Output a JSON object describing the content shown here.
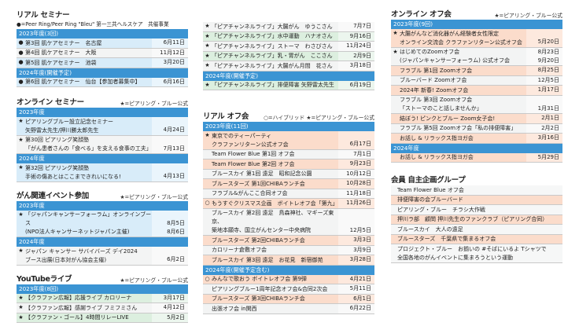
{
  "columns": [
    [
      {
        "title": "リアル セミナー",
        "subtitle": "●=Peer Ring/Peer Ring \"Bleu\" 第一三共ヘルスケア　共催事業",
        "blocks": [
          {
            "header": "2023年度(3回)",
            "rows": [
              {
                "mark": "●",
                "text": "第3回 肌ケアセミナー　名古屋",
                "date": "6月11日",
                "color": "blue"
              },
              {
                "mark": "●",
                "text": "第4回 肌ケアセミナー　大阪",
                "date": "11月12日",
                "color": "gray"
              },
              {
                "mark": "●",
                "text": "第5回 肌ケアセミナー　池袋",
                "date": "3月20日",
                "color": "blue"
              }
            ]
          },
          {
            "header": "2024年度(開催予定)",
            "rows": [
              {
                "mark": "●",
                "text": "第6回 肌ケアセミナー　仙台【参加者募集中】",
                "date": "6月16日",
                "color": "blue"
              }
            ]
          }
        ]
      },
      {
        "title": "オンライン セミナー",
        "legend": "★=ピアリング・ブルー公式",
        "blocks": [
          {
            "header": "2023年度",
            "rows": [
              {
                "mark": "★",
                "text": "ピアリングブルー設立記念セミナー\n矢野雷太先生/押川勝太郎先生",
                "date": "4月24日",
                "color": "blue"
              },
              {
                "mark": "★",
                "text": "第30回 ピアリング笑顔塾\n「がん患者さんの「食べる」を支える食事の工夫」",
                "date": "7月13日",
                "color": "gray"
              }
            ]
          },
          {
            "header": "2024年度",
            "rows": [
              {
                "mark": "★",
                "text": "第32回 ピアリング笑顔塾\n手術の傷あとはここまできれいになる!",
                "date": "4月13日",
                "color": "blue"
              }
            ]
          }
        ]
      },
      {
        "title": "がん関連イベント参加",
        "legend": "★=ピアリング・ブルー公式",
        "blocks": [
          {
            "header": "2023年度",
            "rows": [
              {
                "mark": "★",
                "text": "「ジャパンキャンサーフォーラム」オンラインブース\n(NPO法人キャンサーネットジャパン主催)",
                "date": "8月5日\n8月6日",
                "color": "blue"
              }
            ]
          },
          {
            "header": "2024年度",
            "rows": [
              {
                "mark": "★",
                "text": "ジャパン キャンサー サバイバーズ デイ2024\nブース出展(日本対がん協会主催)",
                "date": "6月2日",
                "color": "gray"
              }
            ]
          }
        ]
      },
      {
        "title": "YouTubeライブ",
        "legend": "★=ピアリング・ブルー公式",
        "blocks": [
          {
            "header": "2023年度(8回)",
            "rows": [
              {
                "mark": "★",
                "text": "【クラファン広報】応援ライブ カロリーナ",
                "date": "3月17日",
                "color": "green"
              },
              {
                "mark": "★",
                "text": "【クラファン広報】感謝ライブ フミフミさん",
                "date": "4月12日",
                "color": "gray"
              },
              {
                "mark": "★",
                "text": "【クラファン・ゴール】4時間リレーLIVE",
                "date": "5月2日",
                "color": "green"
              }
            ]
          }
        ]
      }
    ],
    [
      {
        "blocks": [
          {
            "rows": [
              {
                "mark": "★",
                "text": "「ピアチャンネルライブ」大腸がん　ゆうこさん",
                "date": "7月7日",
                "color": "gray"
              },
              {
                "mark": "★",
                "text": "「ピアチャンネルライブ」水中運動　ハナオさん",
                "date": "9月16日",
                "color": "green"
              },
              {
                "mark": "★",
                "text": "「ピアチャンネルライブ」ストーマ　わさびさん",
                "date": "11月24日",
                "color": "gray"
              },
              {
                "mark": "★",
                "text": "「ピアチャンネルライブ」乳・胃がん　ここさん",
                "date": "2月9日",
                "color": "green"
              },
              {
                "mark": "★",
                "text": "「ピアチャンネルライブ」大腸がん月間　花さん",
                "date": "3月18日",
                "color": "gray"
              }
            ]
          },
          {
            "header": "2024年度(開催予定)",
            "rows": [
              {
                "mark": "★",
                "text": "「ピアチャンネルライブ」排便障害 矢野雷太先生",
                "date": "6月19日",
                "color": "green"
              }
            ]
          }
        ]
      },
      {
        "title": "リアル オフ会",
        "legend": "○=ハイブリッド ★=ピアリング・ブルー公式",
        "blocks": [
          {
            "header": "2023年度(11回)",
            "rows": [
              {
                "mark": "★",
                "text": "東京でのティーパーティ\nクラファンリターン公式オフ会",
                "date": "6月17日",
                "color": "pink"
              },
              {
                "mark": "",
                "text": "Team Flower Blue 第1回 オフ会",
                "date": "7月1日",
                "color": "gray"
              },
              {
                "mark": "",
                "text": "Team Flower Blue 第2回 オフ会",
                "date": "9月23日",
                "color": "pink"
              },
              {
                "mark": "",
                "text": "ブルースカイ 第1回 遠足　昭和記念公園",
                "date": "10月12日",
                "color": "gray"
              },
              {
                "mark": "",
                "text": "ブルースターズ 第1回CHIBAランチ会",
                "date": "10月28日",
                "color": "pink"
              },
              {
                "mark": "",
                "text": "フラブル&がんここ合同オフ会",
                "date": "11月18日",
                "color": "gray"
              },
              {
                "mark": "○",
                "text": "もうすぐクリスマス企画　ボイトレオフ会「第九」",
                "date": "11月26日",
                "color": "pink"
              },
              {
                "mark": "",
                "text": "ブルースカイ 第2回 遠足　鳥森神社、マギーズ東京、\n築地本願寺、国立がんセンター中央病院",
                "date": "12月5日",
                "color": "gray"
              },
              {
                "mark": "",
                "text": "ブルースターズ 第2回CHIBAランチ会",
                "date": "3月3日",
                "color": "pink"
              },
              {
                "mark": "",
                "text": "カロリーナ倉敷オフ会",
                "date": "3月9日",
                "color": "gray"
              },
              {
                "mark": "",
                "text": "ブルースカイ 第3回 遠足　お花見　新宿御苑",
                "date": "3月28日",
                "color": "pink"
              }
            ]
          },
          {
            "header": "2024年度(開催予定含む)",
            "rows": [
              {
                "mark": "○",
                "text": "みんなで歌おう ボイトレオフ会 第9弾",
                "date": "4月21日",
                "color": "pink"
              },
              {
                "mark": "",
                "text": "ピアリングブルー1周年記念オフ会&合同2次会",
                "date": "5月11日",
                "color": "gray"
              },
              {
                "mark": "",
                "text": "ブルースターズ 第3回CHIBAランチ会",
                "date": "6月1日",
                "color": "pink"
              },
              {
                "mark": "",
                "text": "出張オフ会 in関西",
                "date": "6月22日",
                "color": "gray"
              }
            ]
          }
        ]
      }
    ],
    [
      {
        "title": "オンライン オフ会",
        "legend": "★=ピアリング・ブルー公式",
        "blocks": [
          {
            "header": "2023年度(9回)",
            "rows": [
              {
                "mark": "★",
                "text": "大腸がんなど消化器がん経験者女性限定\nオンライン交流会 クラファンリターン公式オフ会",
                "date": "5月20日",
                "color": "pink"
              },
              {
                "mark": "★",
                "text": "はじめてのZoomオフ会\n(ジャパンキャンサーフォーラム) 公式オフ会",
                "date": "8月23日\n9月20日",
                "color": "gray"
              },
              {
                "mark": "",
                "text": "フラブル 第1回 Zoomオフ会",
                "date": "8月25日",
                "color": "pink"
              },
              {
                "mark": "",
                "text": "ブルーバード Zoomオフ会",
                "date": "12月5日",
                "color": "gray"
              },
              {
                "mark": "",
                "text": "2024年 新春! Zoomオフ会",
                "date": "1月17日",
                "color": "pink"
              },
              {
                "mark": "",
                "text": "フラブル 第3回 Zoomオフ会\n「ストーマのこと話しませんか」",
                "date": "1月31日",
                "color": "gray"
              },
              {
                "mark": "",
                "text": "結ぼう! ピンクとブルー Zoom女子会!",
                "date": "2月1日",
                "color": "pink"
              },
              {
                "mark": "",
                "text": "フラブル 第5回 Zoomオフ会「私の排便障害」",
                "date": "2月2日",
                "color": "gray"
              },
              {
                "mark": "",
                "text": "お話し & リラックス指ヨガ会",
                "date": "3月16日",
                "color": "pink"
              }
            ]
          },
          {
            "header": "2024年度",
            "rows": [
              {
                "mark": "",
                "text": "お話し & リラックス指ヨガ会",
                "date": "5月29日",
                "color": "pink"
              }
            ]
          }
        ]
      },
      {
        "title": "会員 自主企画グループ",
        "group": true,
        "blocks": [
          {
            "rows": [
              {
                "mark": "",
                "text": "Team Flower Blue オフ会",
                "date": "",
                "color": "white"
              },
              {
                "mark": "",
                "text": "排便障害の会ブルーバード",
                "date": "",
                "color": "pink"
              },
              {
                "mark": "",
                "text": "ピアリング・ブルー　チラシ大作戦",
                "date": "",
                "color": "white"
              },
              {
                "mark": "",
                "text": "押川ラ部　顧問 押川先生のファンクラブ（ピアリング合同）",
                "date": "",
                "color": "pink"
              },
              {
                "mark": "",
                "text": "ブルースカイ　大人の遠足",
                "date": "",
                "color": "white"
              },
              {
                "mark": "",
                "text": "ブルースターズ　千葉県で集まるオフ会",
                "date": "",
                "color": "pink"
              },
              {
                "mark": "",
                "text": "プロジェクト・ブルー　お揃いの #そばにいるよ Tシャツで\n全国各地のがんイベントに集まろうという運動",
                "date": "",
                "color": "white"
              }
            ]
          }
        ]
      }
    ]
  ]
}
